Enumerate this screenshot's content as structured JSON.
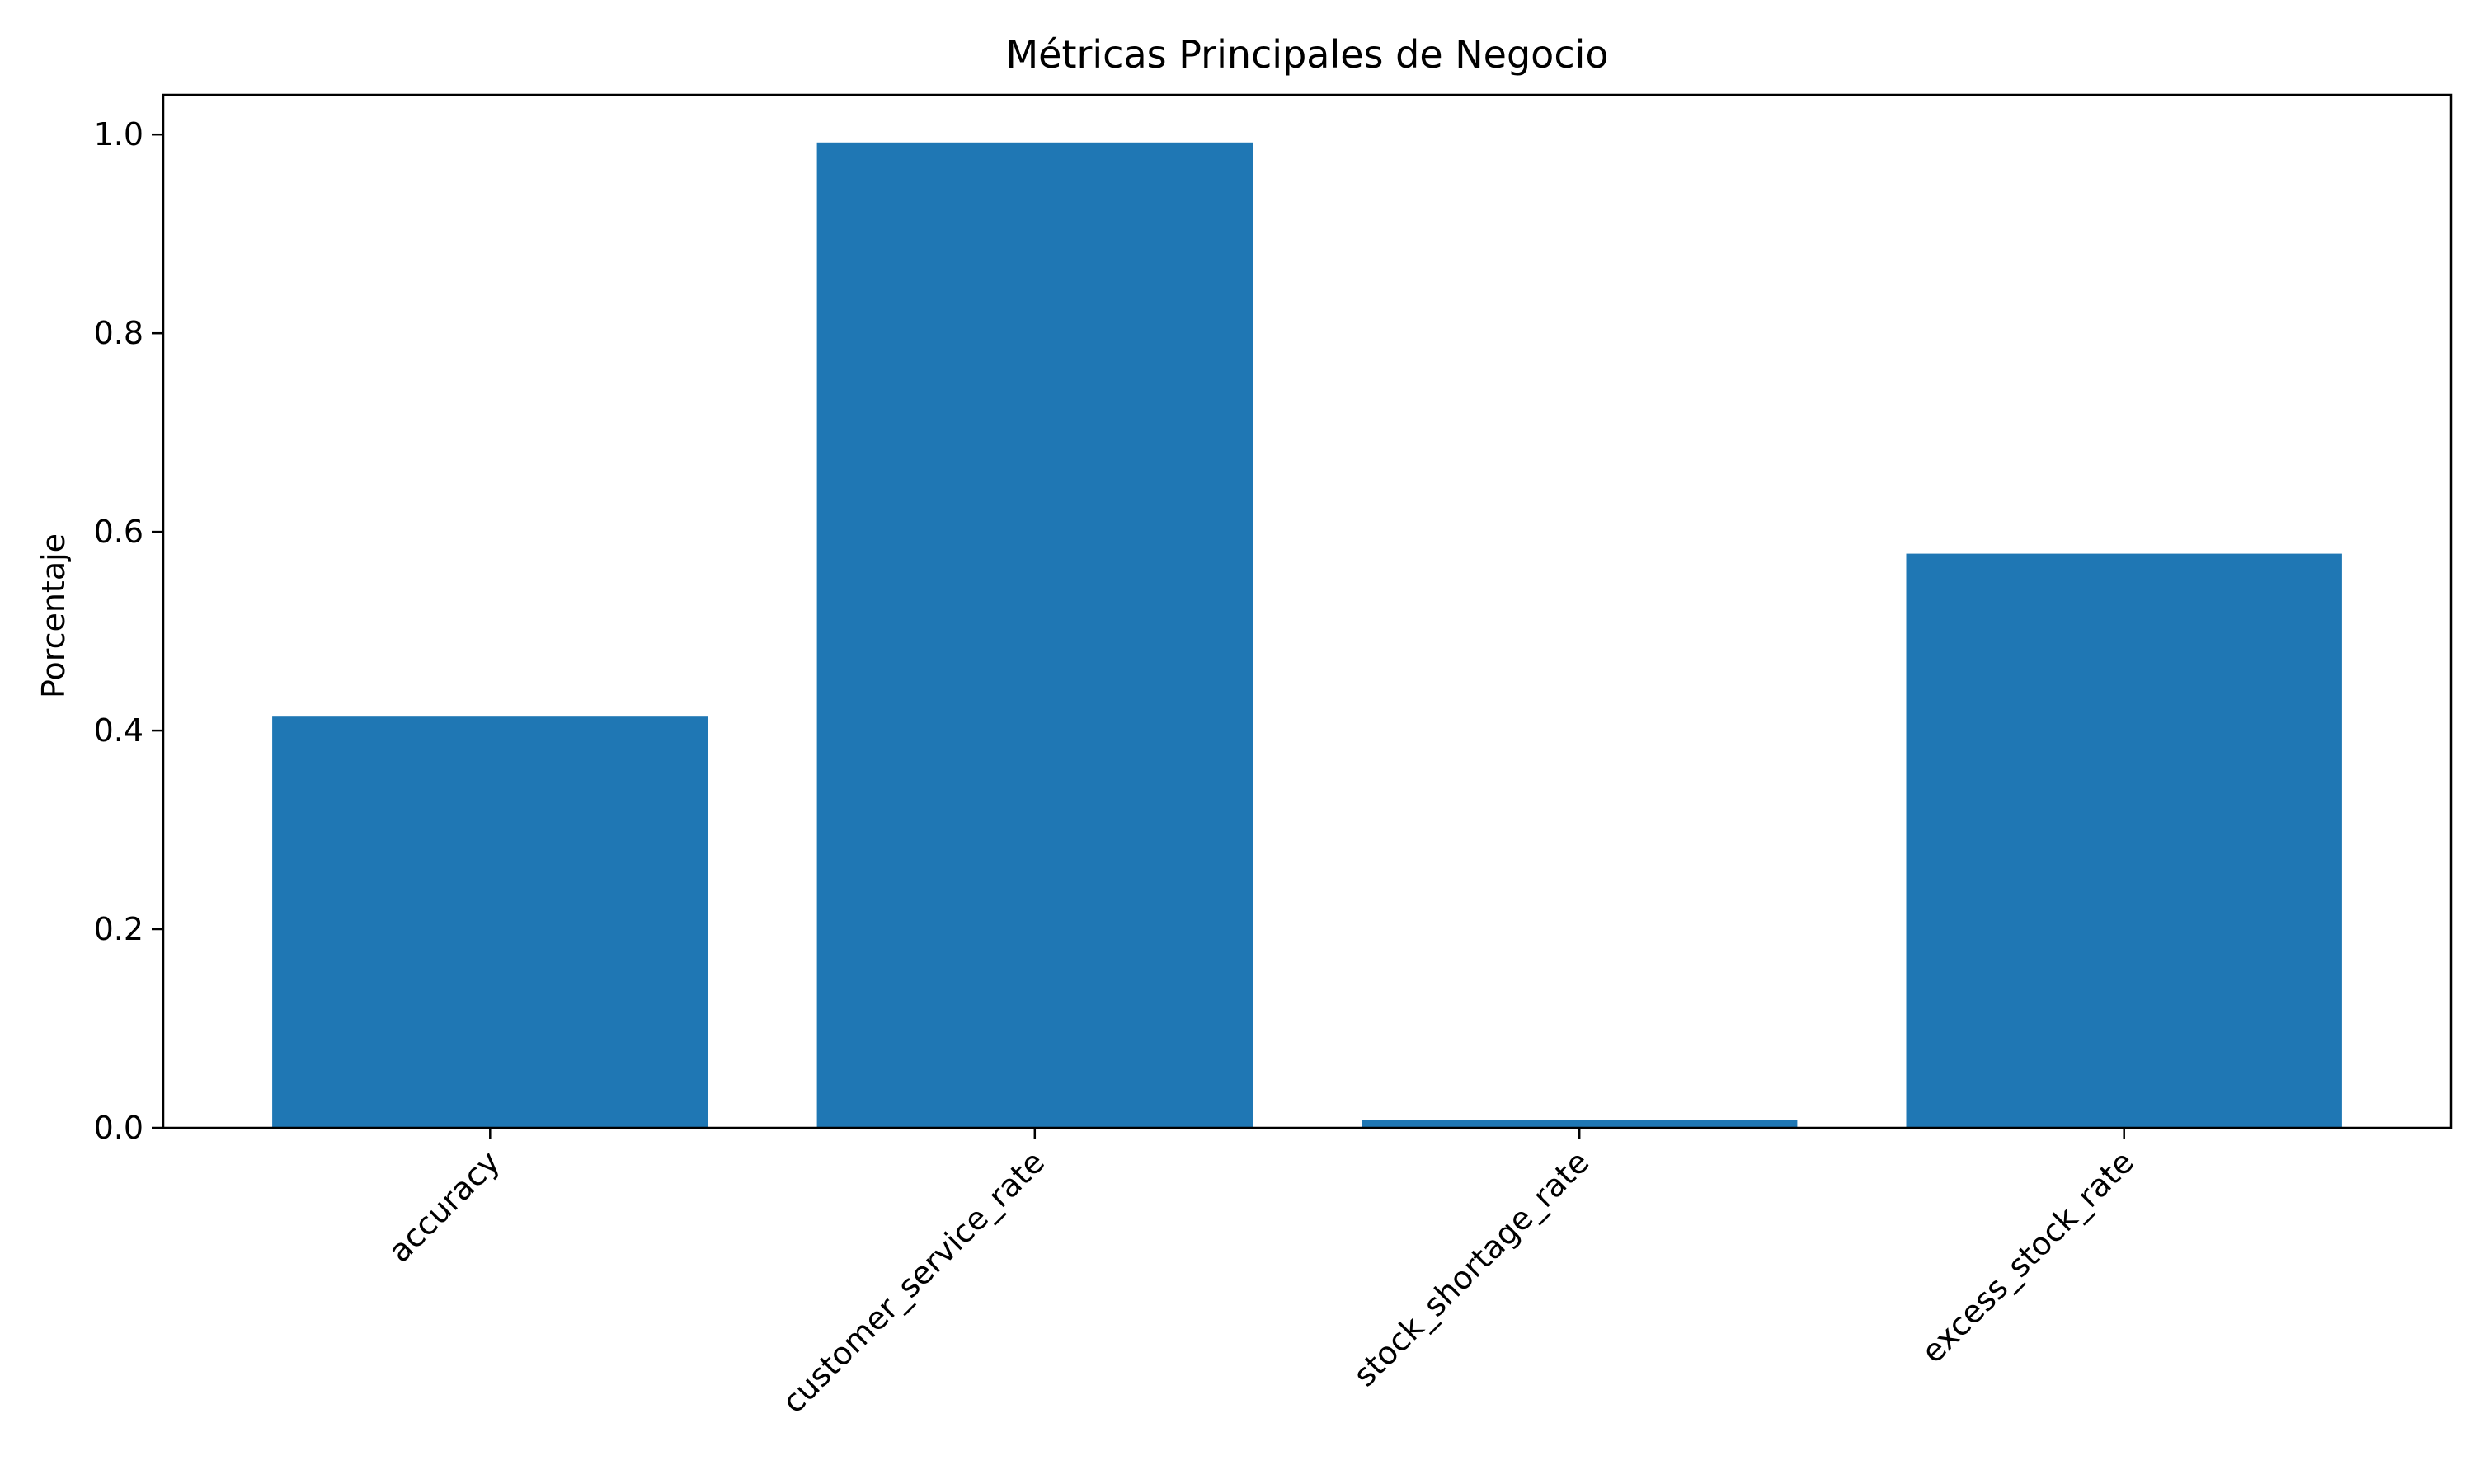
{
  "chart_data": {
    "type": "bar",
    "title": "Métricas Principales de Negocio",
    "xlabel": "",
    "ylabel": "Porcentaje",
    "categories": [
      "accuracy",
      "customer_service_rate",
      "stock_shortage_rate",
      "excess_stock_rate"
    ],
    "values": [
      0.414,
      0.992,
      0.008,
      0.578
    ],
    "ylim": [
      0,
      1.04
    ],
    "yticks": [
      0.0,
      0.2,
      0.4,
      0.6,
      0.8,
      1.0
    ],
    "ytick_labels": [
      "0.0",
      "0.2",
      "0.4",
      "0.6",
      "0.8",
      "1.0"
    ],
    "grid": false,
    "legend": "none",
    "bar_color": "#1f77b4"
  }
}
